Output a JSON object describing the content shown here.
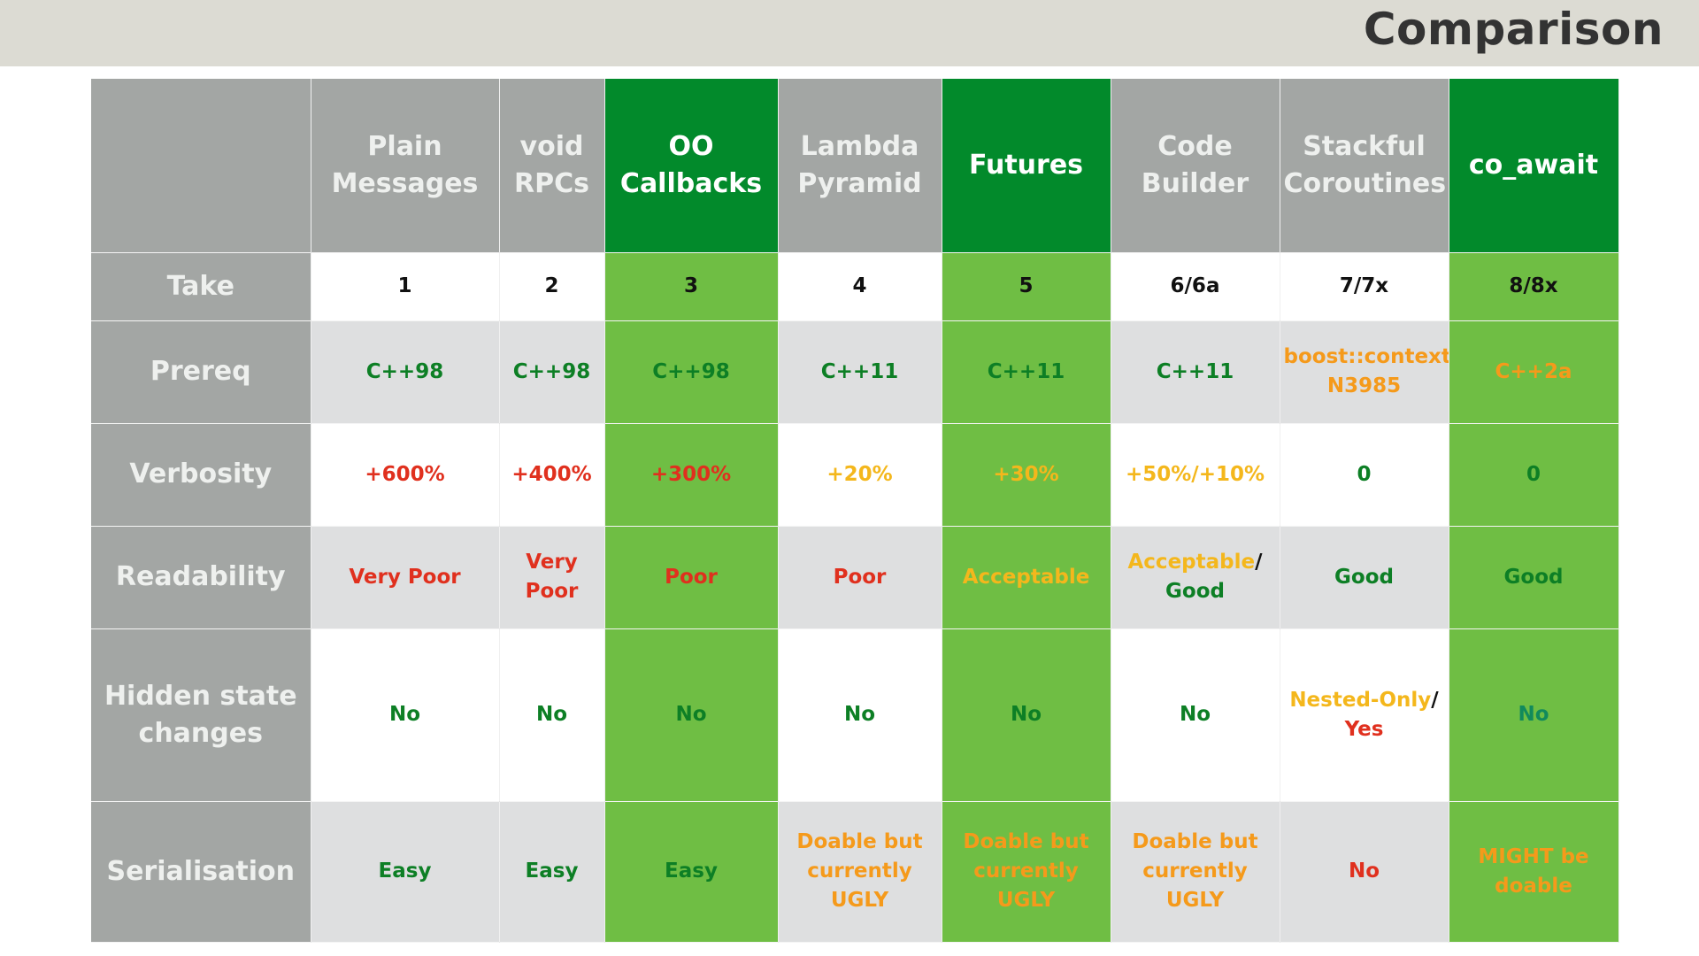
{
  "slide": {
    "title": "Comparison"
  },
  "colors": {
    "title_bar": "#dcdbd3",
    "header_gray": "#a3a6a4",
    "header_highlight": "#028a2b",
    "cell_highlight": "#6fbe44",
    "row_alt": "#dedfe0",
    "red": "#e0301e",
    "orange": "#f59a1b",
    "yellow": "#f4b71c",
    "green": "#0d7f25"
  },
  "table": {
    "columns": [
      {
        "label_line1": "Plain",
        "label_line2": "Messages",
        "highlight": false
      },
      {
        "label_line1": "void",
        "label_line2": "RPCs",
        "highlight": false
      },
      {
        "label_line1": "OO",
        "label_line2": "Callbacks",
        "highlight": true
      },
      {
        "label_line1": "Lambda",
        "label_line2": "Pyramid",
        "highlight": false
      },
      {
        "label_line1": "Futures",
        "label_line2": "",
        "highlight": true
      },
      {
        "label_line1": "Code",
        "label_line2": "Builder",
        "highlight": false
      },
      {
        "label_line1": "Stackful",
        "label_line2": "Coroutines",
        "highlight": false
      },
      {
        "label_line1": "co_await",
        "label_line2": "",
        "highlight": true
      }
    ],
    "rows": [
      {
        "label_line1": "Take",
        "label_line2": "",
        "cells": [
          {
            "parts": [
              {
                "text": "1",
                "color": "black"
              }
            ]
          },
          {
            "parts": [
              {
                "text": "2",
                "color": "black"
              }
            ]
          },
          {
            "parts": [
              {
                "text": "3",
                "color": "black"
              }
            ]
          },
          {
            "parts": [
              {
                "text": "4",
                "color": "black"
              }
            ]
          },
          {
            "parts": [
              {
                "text": "5",
                "color": "black"
              }
            ]
          },
          {
            "parts": [
              {
                "text": "6/6a",
                "color": "black"
              }
            ]
          },
          {
            "parts": [
              {
                "text": "7/7x",
                "color": "black"
              }
            ]
          },
          {
            "parts": [
              {
                "text": "8/8x",
                "color": "black"
              }
            ]
          }
        ]
      },
      {
        "label_line1": "Prereq",
        "label_line2": "",
        "cells": [
          {
            "parts": [
              {
                "text": "C++98",
                "color": "green"
              }
            ]
          },
          {
            "parts": [
              {
                "text": "C++98",
                "color": "green"
              }
            ]
          },
          {
            "parts": [
              {
                "text": "C++98",
                "color": "green"
              }
            ]
          },
          {
            "parts": [
              {
                "text": "C++11",
                "color": "green"
              }
            ]
          },
          {
            "parts": [
              {
                "text": "C++11",
                "color": "green"
              }
            ]
          },
          {
            "parts": [
              {
                "text": "C++11",
                "color": "green"
              }
            ]
          },
          {
            "parts": [
              {
                "text": "boost::context,",
                "color": "orange",
                "br": true
              },
              {
                "text": "N3985",
                "color": "orange"
              }
            ]
          },
          {
            "parts": [
              {
                "text": "C++2a",
                "color": "orange"
              }
            ]
          }
        ]
      },
      {
        "label_line1": "Verbosity",
        "label_line2": "",
        "cells": [
          {
            "parts": [
              {
                "text": "+600%",
                "color": "red"
              }
            ]
          },
          {
            "parts": [
              {
                "text": "+400%",
                "color": "red"
              }
            ]
          },
          {
            "parts": [
              {
                "text": "+300%",
                "color": "red"
              }
            ]
          },
          {
            "parts": [
              {
                "text": "+20%",
                "color": "yellow"
              }
            ]
          },
          {
            "parts": [
              {
                "text": "+30%",
                "color": "yellow"
              }
            ]
          },
          {
            "parts": [
              {
                "text": "+50%/+10%",
                "color": "yellow"
              }
            ]
          },
          {
            "parts": [
              {
                "text": "0",
                "color": "green"
              }
            ]
          },
          {
            "parts": [
              {
                "text": "0",
                "color": "green"
              }
            ]
          }
        ]
      },
      {
        "label_line1": "Readability",
        "label_line2": "",
        "cells": [
          {
            "parts": [
              {
                "text": "Very Poor",
                "color": "red"
              }
            ]
          },
          {
            "parts": [
              {
                "text": "Very Poor",
                "color": "red"
              }
            ]
          },
          {
            "parts": [
              {
                "text": "Poor",
                "color": "red"
              }
            ]
          },
          {
            "parts": [
              {
                "text": "Poor",
                "color": "red"
              }
            ]
          },
          {
            "parts": [
              {
                "text": "Acceptable",
                "color": "yellow"
              }
            ]
          },
          {
            "parts": [
              {
                "text": "Acceptable",
                "color": "yellow"
              },
              {
                "text": "/",
                "color": "black",
                "br": true
              },
              {
                "text": "Good",
                "color": "green"
              }
            ]
          },
          {
            "parts": [
              {
                "text": "Good",
                "color": "green"
              }
            ]
          },
          {
            "parts": [
              {
                "text": "Good",
                "color": "green"
              }
            ]
          }
        ]
      },
      {
        "label_line1": "Hidden state",
        "label_line2": "changes",
        "cells": [
          {
            "parts": [
              {
                "text": "No",
                "color": "green"
              }
            ]
          },
          {
            "parts": [
              {
                "text": "No",
                "color": "green"
              }
            ]
          },
          {
            "parts": [
              {
                "text": "No",
                "color": "green"
              }
            ]
          },
          {
            "parts": [
              {
                "text": "No",
                "color": "green"
              }
            ]
          },
          {
            "parts": [
              {
                "text": "No",
                "color": "green"
              }
            ]
          },
          {
            "parts": [
              {
                "text": "No",
                "color": "green"
              }
            ]
          },
          {
            "parts": [
              {
                "text": "Nested-Only",
                "color": "yellow"
              },
              {
                "text": "/",
                "color": "black",
                "br": true
              },
              {
                "text": "Yes",
                "color": "red"
              }
            ]
          },
          {
            "parts": [
              {
                "text": "No",
                "color": "teal"
              }
            ]
          }
        ]
      },
      {
        "label_line1": "Serialisation",
        "label_line2": "",
        "cells": [
          {
            "parts": [
              {
                "text": "Easy",
                "color": "green"
              }
            ]
          },
          {
            "parts": [
              {
                "text": "Easy",
                "color": "green"
              }
            ]
          },
          {
            "parts": [
              {
                "text": "Easy",
                "color": "green"
              }
            ]
          },
          {
            "parts": [
              {
                "text": "Doable but",
                "color": "orange",
                "br": true
              },
              {
                "text": "currently UGLY",
                "color": "orange"
              }
            ]
          },
          {
            "parts": [
              {
                "text": "Doable but",
                "color": "orange",
                "br": true
              },
              {
                "text": "currently UGLY",
                "color": "orange"
              }
            ]
          },
          {
            "parts": [
              {
                "text": "Doable but",
                "color": "orange",
                "br": true
              },
              {
                "text": "currently UGLY",
                "color": "orange"
              }
            ]
          },
          {
            "parts": [
              {
                "text": "No",
                "color": "red"
              }
            ]
          },
          {
            "parts": [
              {
                "text": "MIGHT be",
                "color": "orange",
                "br": true
              },
              {
                "text": "doable",
                "color": "orange"
              }
            ]
          }
        ]
      }
    ]
  }
}
